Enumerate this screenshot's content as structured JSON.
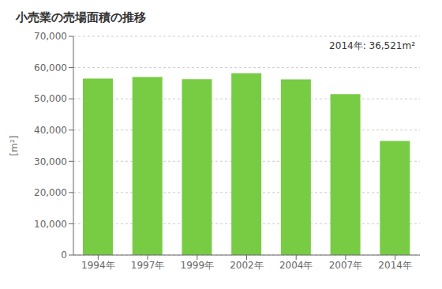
{
  "chart_data": {
    "type": "bar",
    "title": "小売業の売場面積の推移",
    "ylabel": "[m²]",
    "annotation": "2014年: 36,521m²",
    "categories": [
      "1994年",
      "1997年",
      "1999年",
      "2002年",
      "2004年",
      "2007年",
      "2014年"
    ],
    "values": [
      56500,
      57000,
      56300,
      58200,
      56200,
      51500,
      36521
    ],
    "color": "#77cc44",
    "ylim": [
      0,
      70000
    ],
    "yticks": [
      0,
      {
        "value": 10000,
        "label": "10,000"
      },
      {
        "value": 20000,
        "label": "20,000"
      },
      {
        "value": 30000,
        "label": "30,000"
      },
      {
        "value": 40000,
        "label": "40,000"
      },
      {
        "value": 50000,
        "label": "50,000"
      },
      {
        "value": 60000,
        "label": "60,000"
      },
      {
        "value": 70000,
        "label": "70,000"
      }
    ],
    "grid": true
  }
}
